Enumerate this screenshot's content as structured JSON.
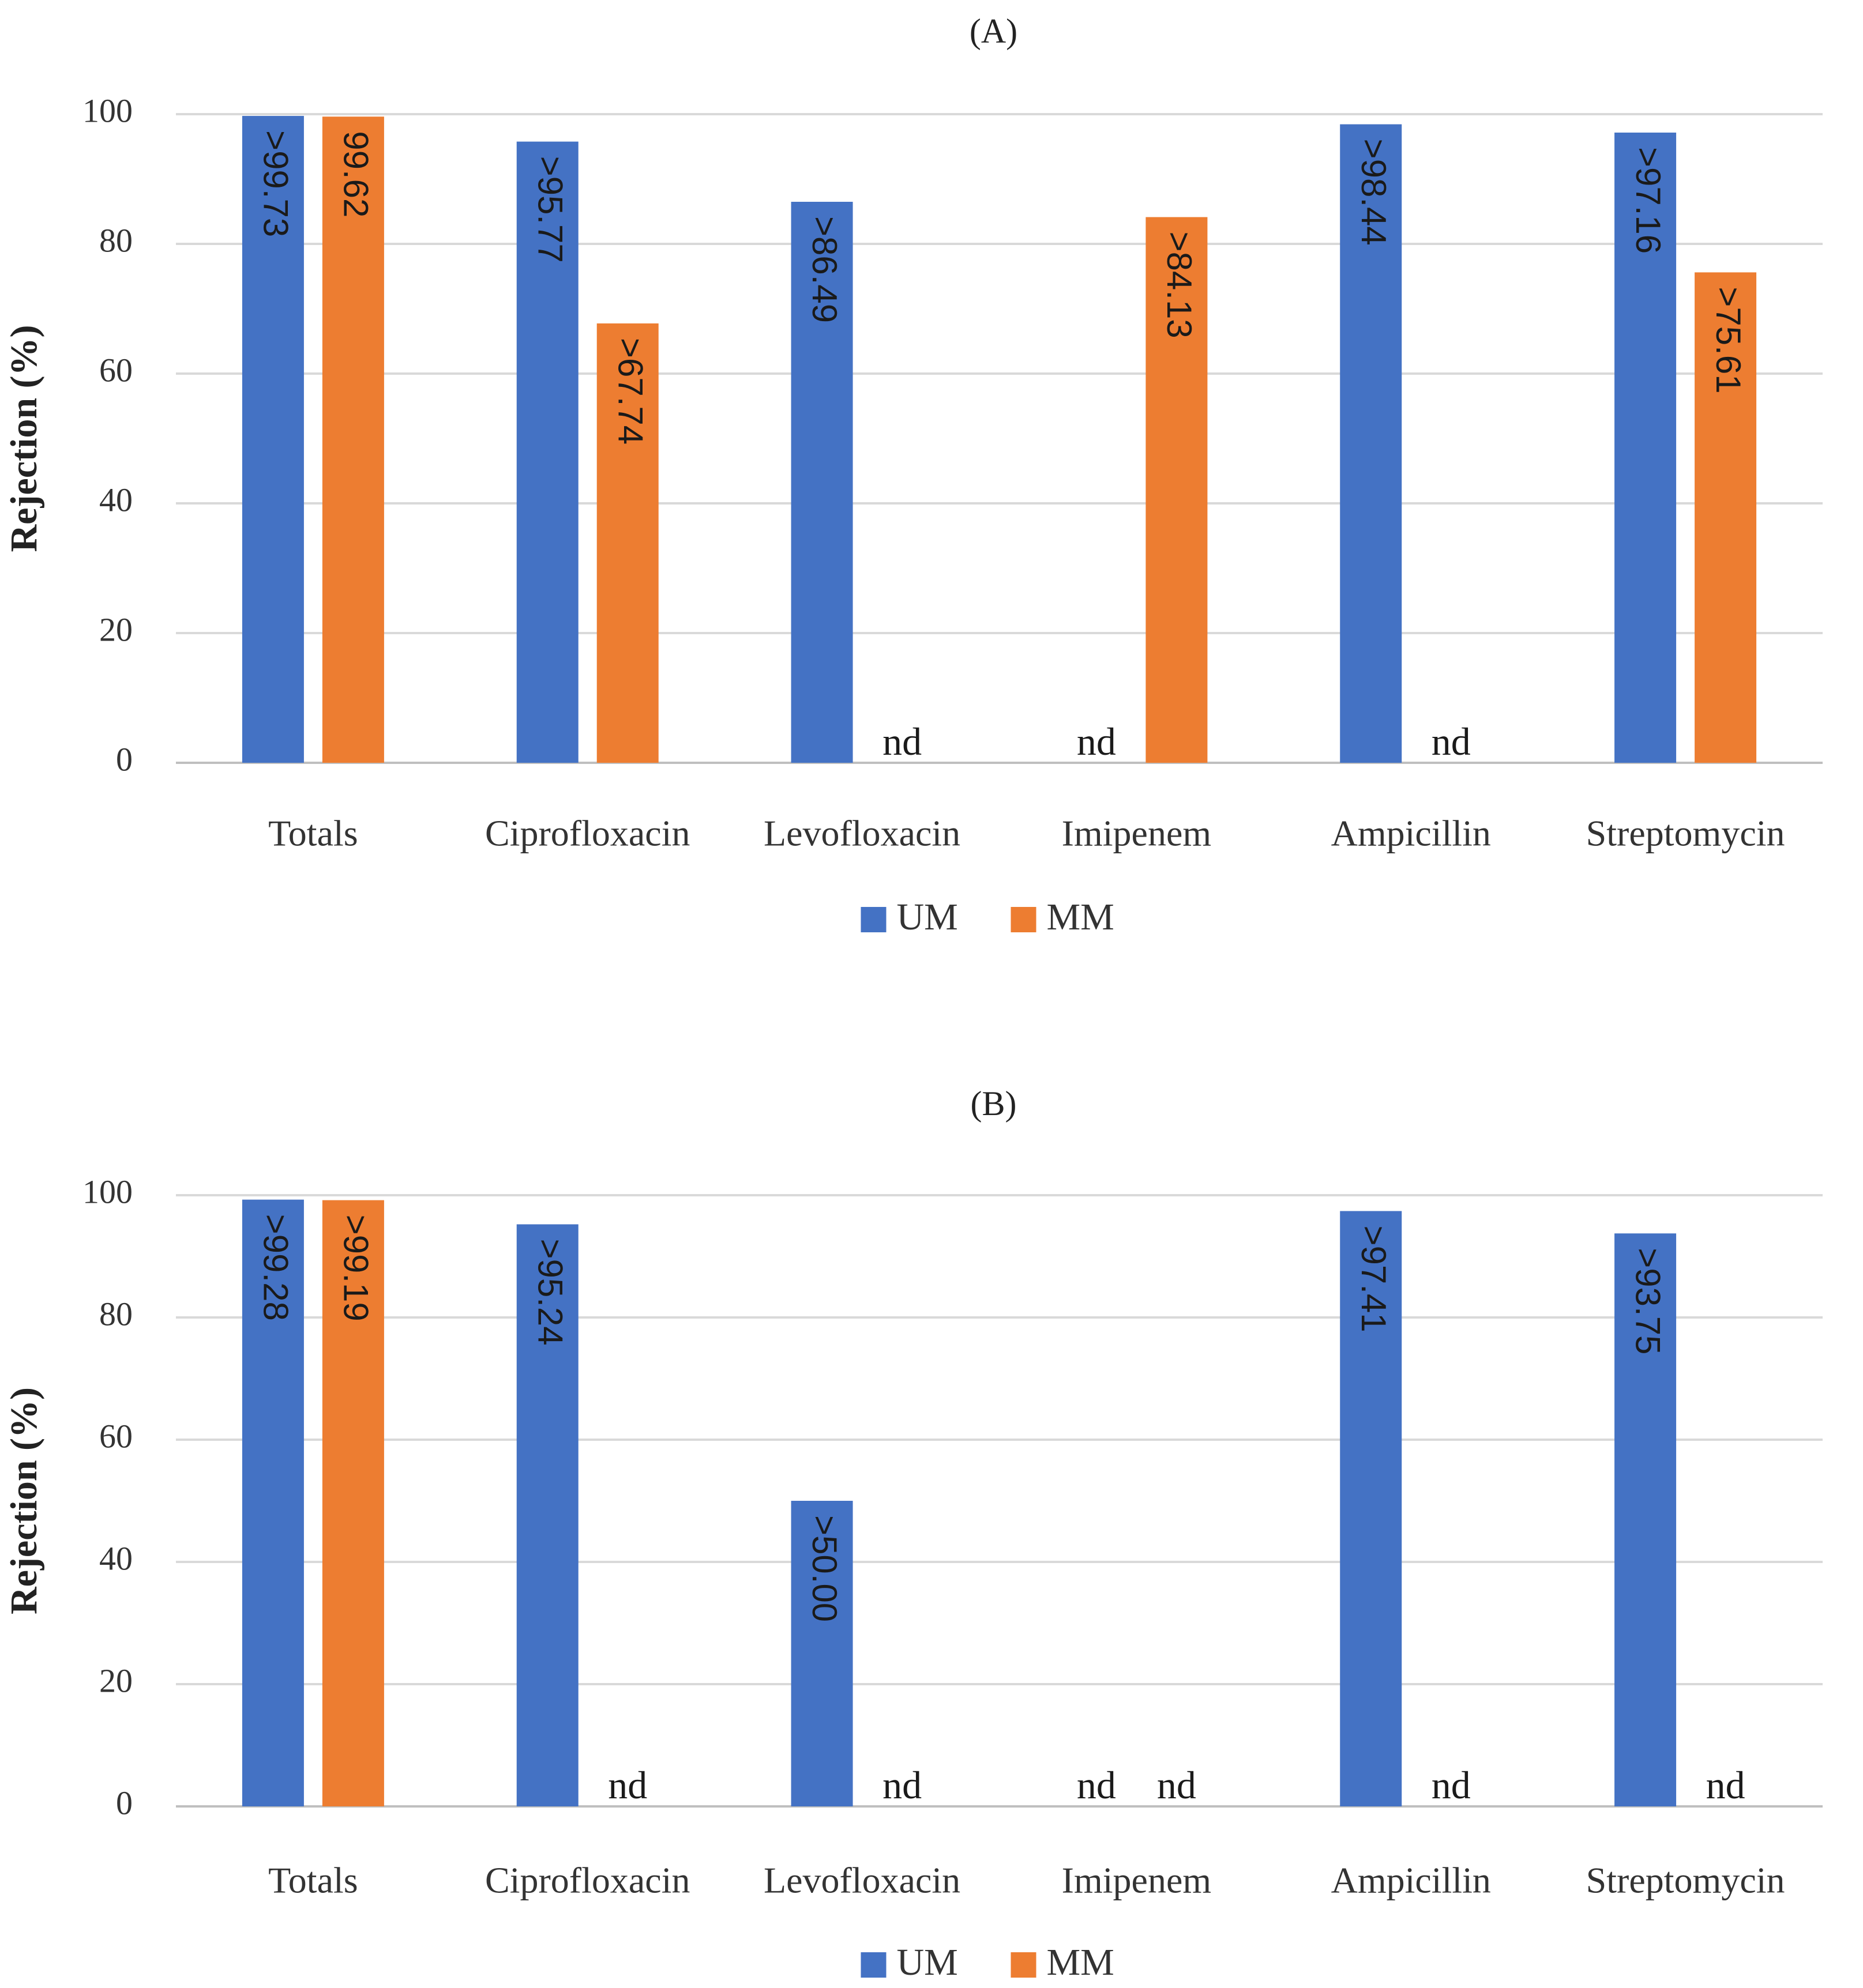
{
  "chart_data": [
    {
      "type": "bar",
      "title": "(A)",
      "ylabel": "Rejection (%)",
      "ylim": [
        0,
        100
      ],
      "yticks": [
        0,
        20,
        40,
        60,
        80,
        100
      ],
      "categories": [
        "Totals",
        "Ciprofloxacin",
        "Levofloxacin",
        "Imipenem",
        "Ampicillin",
        "Streptomycin"
      ],
      "series": [
        {
          "name": "UM",
          "color": "#4472C4",
          "values": [
            99.73,
            95.77,
            86.49,
            null,
            98.44,
            97.16
          ],
          "labels": [
            ">99.73",
            ">95.77",
            ">86.49",
            "nd",
            ">98.44",
            ">97.16"
          ]
        },
        {
          "name": "MM",
          "color": "#ED7D31",
          "values": [
            99.62,
            67.74,
            null,
            84.13,
            null,
            75.61
          ],
          "labels": [
            "99.62",
            ">67.74",
            "nd",
            ">84.13",
            "nd",
            ">75.61"
          ]
        }
      ],
      "legend": "bottom-center",
      "grid": true
    },
    {
      "type": "bar",
      "title": "(B)",
      "ylabel": "Rejection (%)",
      "ylim": [
        0,
        100
      ],
      "yticks": [
        0,
        20,
        40,
        60,
        80,
        100
      ],
      "categories": [
        "Totals",
        "Ciprofloxacin",
        "Levofloxacin",
        "Imipenem",
        "Ampicillin",
        "Streptomycin"
      ],
      "series": [
        {
          "name": "UM",
          "color": "#4472C4",
          "values": [
            99.28,
            95.24,
            50.0,
            null,
            97.41,
            93.75
          ],
          "labels": [
            ">99.28",
            ">95.24",
            ">50.00",
            "nd",
            ">97.41",
            ">93.75"
          ]
        },
        {
          "name": "MM",
          "color": "#ED7D31",
          "values": [
            99.19,
            null,
            null,
            null,
            null,
            null
          ],
          "labels": [
            ">99.19",
            "nd",
            "nd",
            "nd",
            "nd",
            "nd"
          ]
        }
      ],
      "legend": "bottom-center",
      "grid": true
    }
  ]
}
